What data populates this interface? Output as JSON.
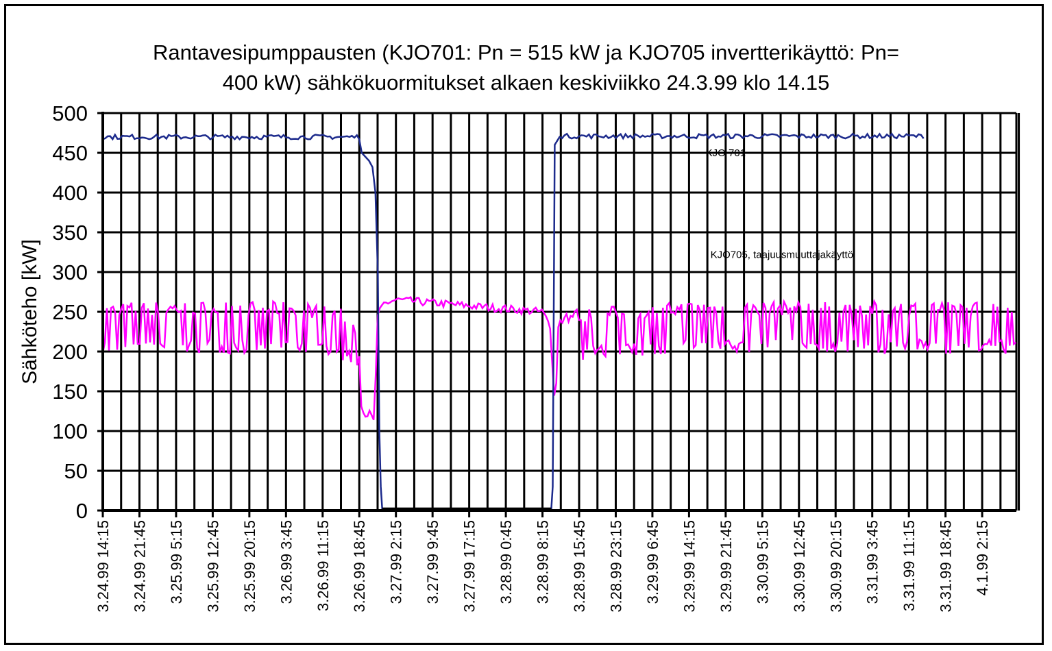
{
  "chart_data": {
    "type": "line",
    "title_line1": "Rantavesipumppausten (KJO701: Pn = 515 kW ja KJO705 invertterikäyttö: Pn=",
    "title_line2": "400 kW)  sähkökuormitukset alkaen keskiviikko 24.3.99 klo 14.15",
    "ylabel": "Sähköteho  [kW]",
    "ylim": [
      0,
      500
    ],
    "yticks": [
      0,
      50,
      100,
      150,
      200,
      250,
      300,
      350,
      400,
      450,
      500
    ],
    "grid": true,
    "xticks": [
      "3.24.99 14:15",
      "3.24.99 21:45",
      "3.25.99 5:15",
      "3.25.99 12:45",
      "3.25.99 20:15",
      "3.26.99 3:45",
      "3.26.99 11:15",
      "3.26.99 18:45",
      "3.27.99 2:15",
      "3.27.99 9:45",
      "3.27.99 17:15",
      "3.28.99 0:45",
      "3.28.99 8:15",
      "3.28.99 15:45",
      "3.28.99 23:15",
      "3.29.99 6:45",
      "3.29.99 14:15",
      "3.29.99 21:45",
      "3.30.99 5:15",
      "3.30.99 12:45",
      "3.30.99 20:15",
      "3.31.99 3:45",
      "3.31.99 11:15",
      "3.31.99 18:45",
      "4.1.99 2:15"
    ],
    "x_units": "hours from 3.24.99 14:15",
    "x_range_hours": [
      0,
      187
    ],
    "annotations": [
      {
        "text": "KJO 701",
        "x_hours": 127.5,
        "y": 450
      },
      {
        "text": "KJO705, taajuusmuuttajakäyttö",
        "x_hours": 139,
        "y": 322
      }
    ],
    "series": [
      {
        "name": "KJO 701",
        "color": "#1c2a8c",
        "x": [
          0,
          20,
          40,
          60,
          52.5,
          53,
          54.5,
          55.2,
          55.8,
          56.3,
          56.6,
          56.9,
          57.2,
          90,
          91.8,
          92.1,
          92.5,
          93.5,
          140,
          160,
          168
        ],
        "y": [
          470,
          471,
          470,
          471,
          471,
          450,
          440,
          432,
          400,
          300,
          100,
          30,
          2,
          2,
          2,
          30,
          460,
          470,
          471,
          472,
          472
        ]
      },
      {
        "name": "KJO705, taajuusmuuttajakäyttö",
        "color": "#ff00ff",
        "x": [
          0,
          20,
          40,
          50,
          52.5,
          53,
          54.8,
          55.5,
          56.3,
          57.5,
          60,
          80,
          90,
          91.8,
          92.5,
          93.5,
          120,
          160,
          187
        ],
        "y": [
          230,
          230,
          230,
          220,
          200,
          125,
          120,
          110,
          245,
          260,
          265,
          255,
          250,
          230,
          160,
          220,
          230,
          230,
          230
        ]
      }
    ]
  }
}
